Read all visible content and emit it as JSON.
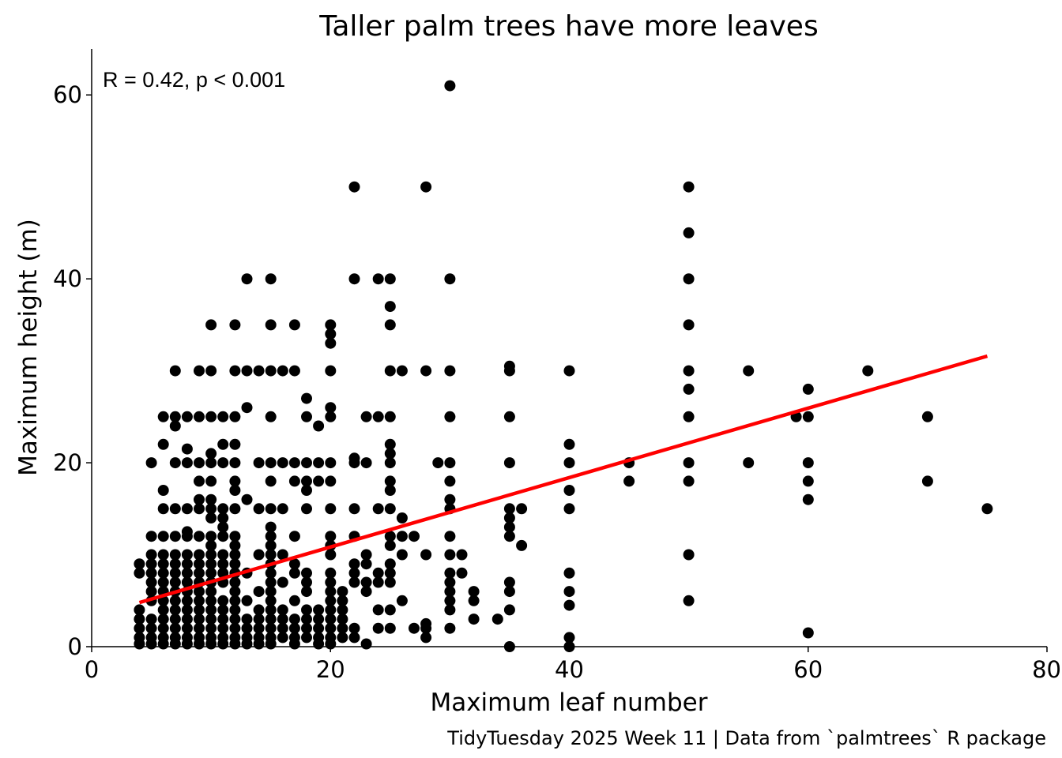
{
  "chart_data": {
    "type": "scatter",
    "title": "Taller palm trees have more leaves",
    "xlabel": "Maximum leaf number",
    "ylabel": "Maximum height (m)",
    "caption": "TidyTuesday 2025 Week 11 | Data from `palmtrees` R package",
    "annotation": "R = 0.42, p < 0.001",
    "xlim": [
      0,
      80
    ],
    "ylim": [
      0,
      65
    ],
    "x_ticks": [
      0,
      20,
      40,
      60,
      80
    ],
    "y_ticks": [
      0,
      20,
      40,
      60
    ],
    "grid": false,
    "point_color": "#000000",
    "trend_color": "#ff0000",
    "trend_line": {
      "x": [
        4,
        75
      ],
      "y": [
        4.8,
        31.6
      ]
    },
    "points": [
      [
        30,
        61
      ],
      [
        22,
        50
      ],
      [
        28,
        50
      ],
      [
        50,
        50
      ],
      [
        50,
        45
      ],
      [
        13,
        40
      ],
      [
        15,
        40
      ],
      [
        22,
        40
      ],
      [
        24,
        40
      ],
      [
        25,
        40
      ],
      [
        30,
        40
      ],
      [
        50,
        40
      ],
      [
        25,
        37
      ],
      [
        10,
        35
      ],
      [
        12,
        35
      ],
      [
        15,
        35
      ],
      [
        17,
        35
      ],
      [
        20,
        35
      ],
      [
        25,
        35
      ],
      [
        50,
        35
      ],
      [
        20,
        34
      ],
      [
        20,
        33
      ],
      [
        7,
        30
      ],
      [
        9,
        30
      ],
      [
        10,
        30
      ],
      [
        12,
        30
      ],
      [
        13,
        30
      ],
      [
        14,
        30
      ],
      [
        15,
        30
      ],
      [
        16,
        30
      ],
      [
        17,
        30
      ],
      [
        20,
        30
      ],
      [
        25,
        30
      ],
      [
        26,
        30
      ],
      [
        28,
        30
      ],
      [
        30,
        30
      ],
      [
        35,
        30.5
      ],
      [
        35,
        30
      ],
      [
        40,
        30
      ],
      [
        50,
        30
      ],
      [
        55,
        30
      ],
      [
        65,
        30
      ],
      [
        50,
        28
      ],
      [
        60,
        28
      ],
      [
        18,
        27
      ],
      [
        13,
        26
      ],
      [
        20,
        26
      ],
      [
        19,
        24
      ],
      [
        6,
        25
      ],
      [
        7,
        25
      ],
      [
        8,
        25
      ],
      [
        9,
        25
      ],
      [
        10,
        25
      ],
      [
        11,
        25
      ],
      [
        12,
        25
      ],
      [
        15,
        25
      ],
      [
        18,
        25
      ],
      [
        20,
        25
      ],
      [
        23,
        25
      ],
      [
        24,
        25
      ],
      [
        25,
        25
      ],
      [
        30,
        25
      ],
      [
        35,
        25
      ],
      [
        50,
        25
      ],
      [
        59,
        25
      ],
      [
        60,
        25
      ],
      [
        70,
        25
      ],
      [
        7,
        24
      ],
      [
        6,
        22
      ],
      [
        11,
        22
      ],
      [
        12,
        22
      ],
      [
        25,
        22
      ],
      [
        40,
        22
      ],
      [
        8,
        21.5
      ],
      [
        10,
        21
      ],
      [
        25,
        21
      ],
      [
        22,
        20.5
      ],
      [
        5,
        20
      ],
      [
        7,
        20
      ],
      [
        8,
        20
      ],
      [
        9,
        20
      ],
      [
        10,
        20
      ],
      [
        11,
        20
      ],
      [
        12,
        20
      ],
      [
        14,
        20
      ],
      [
        15,
        20
      ],
      [
        16,
        20
      ],
      [
        17,
        20
      ],
      [
        18,
        20
      ],
      [
        19,
        20
      ],
      [
        20,
        20
      ],
      [
        22,
        20
      ],
      [
        23,
        20
      ],
      [
        25,
        20
      ],
      [
        29,
        20
      ],
      [
        30,
        20
      ],
      [
        35,
        20
      ],
      [
        40,
        20
      ],
      [
        45,
        20
      ],
      [
        50,
        20
      ],
      [
        55,
        20
      ],
      [
        60,
        20
      ],
      [
        9,
        18
      ],
      [
        10,
        18
      ],
      [
        12,
        18
      ],
      [
        15,
        18
      ],
      [
        17,
        18
      ],
      [
        18,
        18
      ],
      [
        19,
        18
      ],
      [
        20,
        18
      ],
      [
        25,
        18
      ],
      [
        30,
        18
      ],
      [
        45,
        18
      ],
      [
        50,
        18
      ],
      [
        60,
        18
      ],
      [
        70,
        18
      ],
      [
        6,
        17
      ],
      [
        12,
        17
      ],
      [
        18,
        17
      ],
      [
        25,
        17
      ],
      [
        40,
        17
      ],
      [
        9,
        16
      ],
      [
        10,
        16
      ],
      [
        13,
        16
      ],
      [
        30,
        16
      ],
      [
        60,
        16
      ],
      [
        6,
        15
      ],
      [
        7,
        15
      ],
      [
        8,
        15
      ],
      [
        9,
        15
      ],
      [
        10,
        15
      ],
      [
        11,
        15
      ],
      [
        12,
        15
      ],
      [
        14,
        15
      ],
      [
        15,
        15
      ],
      [
        16,
        15
      ],
      [
        18,
        15
      ],
      [
        20,
        15
      ],
      [
        22,
        15
      ],
      [
        24,
        15
      ],
      [
        25,
        15
      ],
      [
        30,
        15
      ],
      [
        35,
        15
      ],
      [
        36,
        15
      ],
      [
        40,
        15
      ],
      [
        75,
        15
      ],
      [
        10,
        14
      ],
      [
        11,
        14
      ],
      [
        26,
        14
      ],
      [
        35,
        14
      ],
      [
        11,
        13
      ],
      [
        15,
        13
      ],
      [
        35,
        13
      ],
      [
        8,
        12.5
      ],
      [
        5,
        12
      ],
      [
        6,
        12
      ],
      [
        7,
        12
      ],
      [
        8,
        12
      ],
      [
        9,
        12
      ],
      [
        10,
        12
      ],
      [
        11,
        12
      ],
      [
        12,
        12
      ],
      [
        15,
        12
      ],
      [
        17,
        12
      ],
      [
        20,
        12
      ],
      [
        22,
        12
      ],
      [
        25,
        12
      ],
      [
        26,
        12
      ],
      [
        27,
        12
      ],
      [
        30,
        12
      ],
      [
        35,
        12
      ],
      [
        10,
        11
      ],
      [
        12,
        11
      ],
      [
        15,
        11
      ],
      [
        20,
        11
      ],
      [
        25,
        11
      ],
      [
        36,
        11
      ],
      [
        5,
        10
      ],
      [
        6,
        10
      ],
      [
        7,
        10
      ],
      [
        8,
        10
      ],
      [
        9,
        10
      ],
      [
        10,
        10
      ],
      [
        11,
        10
      ],
      [
        12,
        10
      ],
      [
        14,
        10
      ],
      [
        15,
        10
      ],
      [
        16,
        10
      ],
      [
        20,
        10
      ],
      [
        23,
        10
      ],
      [
        26,
        10
      ],
      [
        28,
        10
      ],
      [
        30,
        10
      ],
      [
        31,
        10
      ],
      [
        50,
        10
      ],
      [
        4,
        9
      ],
      [
        5,
        9
      ],
      [
        6,
        9
      ],
      [
        7,
        9
      ],
      [
        8,
        9
      ],
      [
        9,
        9
      ],
      [
        10,
        9
      ],
      [
        11,
        9
      ],
      [
        12,
        9
      ],
      [
        15,
        9
      ],
      [
        17,
        9
      ],
      [
        22,
        9
      ],
      [
        23,
        9
      ],
      [
        25,
        9
      ],
      [
        4,
        8
      ],
      [
        5,
        8
      ],
      [
        6,
        8
      ],
      [
        7,
        8
      ],
      [
        8,
        8
      ],
      [
        9,
        8
      ],
      [
        10,
        8
      ],
      [
        11,
        8
      ],
      [
        12,
        8
      ],
      [
        13,
        8
      ],
      [
        15,
        8
      ],
      [
        17,
        8
      ],
      [
        18,
        8
      ],
      [
        20,
        8
      ],
      [
        22,
        8
      ],
      [
        24,
        8
      ],
      [
        25,
        8
      ],
      [
        30,
        8
      ],
      [
        31,
        8
      ],
      [
        40,
        8
      ],
      [
        5,
        7
      ],
      [
        6,
        7
      ],
      [
        7,
        7
      ],
      [
        8,
        7
      ],
      [
        9,
        7
      ],
      [
        10,
        7
      ],
      [
        11,
        7
      ],
      [
        12,
        7
      ],
      [
        15,
        7
      ],
      [
        16,
        7
      ],
      [
        18,
        7
      ],
      [
        20,
        7
      ],
      [
        22,
        7
      ],
      [
        23,
        7
      ],
      [
        24,
        7
      ],
      [
        25,
        7
      ],
      [
        30,
        7
      ],
      [
        35,
        7
      ],
      [
        5,
        6
      ],
      [
        6,
        6
      ],
      [
        7,
        6
      ],
      [
        8,
        6
      ],
      [
        9,
        6
      ],
      [
        10,
        6
      ],
      [
        12,
        6
      ],
      [
        14,
        6
      ],
      [
        15,
        6
      ],
      [
        18,
        6
      ],
      [
        20,
        6
      ],
      [
        21,
        6
      ],
      [
        23,
        6
      ],
      [
        30,
        6
      ],
      [
        32,
        6
      ],
      [
        35,
        6
      ],
      [
        40,
        6
      ],
      [
        5,
        5
      ],
      [
        6,
        5
      ],
      [
        7,
        5
      ],
      [
        8,
        5
      ],
      [
        9,
        5
      ],
      [
        10,
        5
      ],
      [
        11,
        5
      ],
      [
        12,
        5
      ],
      [
        13,
        5
      ],
      [
        15,
        5
      ],
      [
        17,
        5
      ],
      [
        20,
        5
      ],
      [
        21,
        5
      ],
      [
        26,
        5
      ],
      [
        30,
        5
      ],
      [
        32,
        5
      ],
      [
        50,
        5
      ],
      [
        4,
        4
      ],
      [
        6,
        4
      ],
      [
        7,
        4
      ],
      [
        8,
        4
      ],
      [
        9,
        4
      ],
      [
        10,
        4
      ],
      [
        11,
        4
      ],
      [
        12,
        4
      ],
      [
        14,
        4
      ],
      [
        15,
        4
      ],
      [
        16,
        4
      ],
      [
        18,
        4
      ],
      [
        19,
        4
      ],
      [
        20,
        4
      ],
      [
        21,
        4
      ],
      [
        24,
        4
      ],
      [
        25,
        4
      ],
      [
        30,
        4
      ],
      [
        35,
        4
      ],
      [
        40,
        4.5
      ],
      [
        4,
        3
      ],
      [
        5,
        3
      ],
      [
        6,
        3
      ],
      [
        7,
        3
      ],
      [
        8,
        3
      ],
      [
        9,
        3
      ],
      [
        10,
        3
      ],
      [
        11,
        3
      ],
      [
        12,
        3
      ],
      [
        13,
        3
      ],
      [
        14,
        3
      ],
      [
        15,
        3
      ],
      [
        16,
        3
      ],
      [
        17,
        3
      ],
      [
        18,
        3
      ],
      [
        19,
        3
      ],
      [
        20,
        3
      ],
      [
        21,
        3
      ],
      [
        32,
        3
      ],
      [
        34,
        3
      ],
      [
        4,
        2
      ],
      [
        5,
        2
      ],
      [
        6,
        2
      ],
      [
        7,
        2
      ],
      [
        8,
        2
      ],
      [
        9,
        2
      ],
      [
        10,
        2
      ],
      [
        11,
        2
      ],
      [
        12,
        2
      ],
      [
        13,
        2
      ],
      [
        14,
        2
      ],
      [
        15,
        2
      ],
      [
        16,
        2
      ],
      [
        17,
        2
      ],
      [
        18,
        2
      ],
      [
        19,
        2
      ],
      [
        20,
        2
      ],
      [
        21,
        2
      ],
      [
        22,
        2
      ],
      [
        24,
        2
      ],
      [
        25,
        2
      ],
      [
        27,
        2
      ],
      [
        28,
        2
      ],
      [
        30,
        2
      ],
      [
        28,
        2.5
      ],
      [
        4,
        1
      ],
      [
        5,
        1
      ],
      [
        6,
        1
      ],
      [
        7,
        1
      ],
      [
        8,
        1
      ],
      [
        9,
        1
      ],
      [
        10,
        1
      ],
      [
        11,
        1
      ],
      [
        12,
        1
      ],
      [
        13,
        1
      ],
      [
        14,
        1
      ],
      [
        15,
        1
      ],
      [
        16,
        1
      ],
      [
        17,
        1
      ],
      [
        18,
        1
      ],
      [
        19,
        1
      ],
      [
        20,
        1
      ],
      [
        21,
        1
      ],
      [
        22,
        1
      ],
      [
        28,
        1
      ],
      [
        40,
        1
      ],
      [
        60,
        1.5
      ],
      [
        4,
        0.3
      ],
      [
        5,
        0.3
      ],
      [
        6,
        0.3
      ],
      [
        7,
        0.3
      ],
      [
        8,
        0.3
      ],
      [
        9,
        0.3
      ],
      [
        10,
        0.3
      ],
      [
        11,
        0.3
      ],
      [
        12,
        0.3
      ],
      [
        13,
        0.3
      ],
      [
        14,
        0.3
      ],
      [
        15,
        0.3
      ],
      [
        17,
        0.3
      ],
      [
        19,
        0.3
      ],
      [
        20,
        0.3
      ],
      [
        23,
        0.3
      ],
      [
        35,
        0
      ],
      [
        40,
        0
      ]
    ]
  }
}
